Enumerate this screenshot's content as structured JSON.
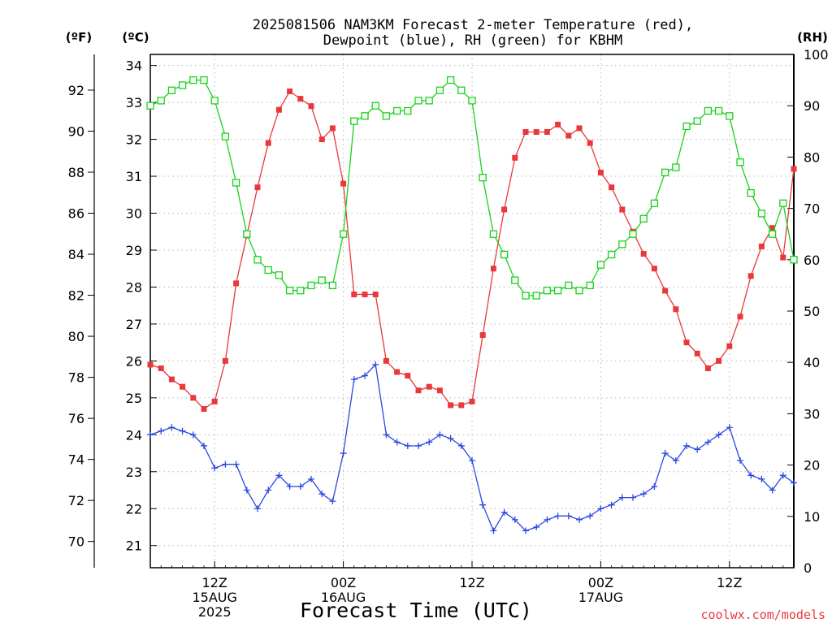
{
  "chart_data": {
    "type": "line",
    "title_line1": "2025081506 NAM3KM Forecast 2-meter Temperature (red),",
    "title_line2": "Dewpoint (blue), RH (green) for KBHM",
    "left_axis_f_label": "(ºF)",
    "left_axis_c_label": "(ºC)",
    "right_axis_label": "(RH)",
    "xlabel": "Forecast Time (UTC)",
    "credit": "coolwx.com/models",
    "x_hours_range": [
      6,
      66
    ],
    "celsius_range": [
      20.4,
      34.3
    ],
    "rh_range": [
      0,
      100
    ],
    "grid": true,
    "f_ticks": [
      "70",
      "72",
      "74",
      "76",
      "78",
      "80",
      "82",
      "84",
      "86",
      "88",
      "90",
      "92"
    ],
    "c_ticks": [
      "21",
      "22",
      "23",
      "24",
      "25",
      "26",
      "27",
      "28",
      "29",
      "30",
      "31",
      "32",
      "33",
      "34"
    ],
    "rh_ticks": [
      "0",
      "10",
      "20",
      "30",
      "40",
      "50",
      "60",
      "70",
      "80",
      "90",
      "100"
    ],
    "x_ticks": [
      {
        "hour": 12,
        "lines": [
          "12Z",
          "15AUG",
          "2025"
        ]
      },
      {
        "hour": 24,
        "lines": [
          "00Z",
          "16AUG"
        ]
      },
      {
        "hour": 36,
        "lines": [
          "12Z"
        ]
      },
      {
        "hour": 48,
        "lines": [
          "00Z",
          "17AUG"
        ]
      },
      {
        "hour": 60,
        "lines": [
          "12Z"
        ]
      }
    ],
    "series": [
      {
        "name": "Temperature",
        "unit": "C",
        "color": "#e8383b",
        "marker": "filled-square",
        "points": [
          [
            6,
            25.9
          ],
          [
            7,
            25.8
          ],
          [
            8,
            25.5
          ],
          [
            9,
            25.3
          ],
          [
            10,
            25.0
          ],
          [
            11,
            24.7
          ],
          [
            12,
            24.9
          ],
          [
            13,
            26.0
          ],
          [
            14,
            28.1
          ],
          [
            15,
            29.4
          ],
          [
            16,
            30.7
          ],
          [
            17,
            31.9
          ],
          [
            18,
            32.8
          ],
          [
            19,
            33.3
          ],
          [
            20,
            33.1
          ],
          [
            21,
            32.9
          ],
          [
            22,
            32.0
          ],
          [
            23,
            32.3
          ],
          [
            24,
            30.8
          ],
          [
            25,
            27.8
          ],
          [
            26,
            27.8
          ],
          [
            27,
            27.8
          ],
          [
            28,
            26.0
          ],
          [
            29,
            25.7
          ],
          [
            30,
            25.6
          ],
          [
            31,
            25.2
          ],
          [
            32,
            25.3
          ],
          [
            33,
            25.2
          ],
          [
            34,
            24.8
          ],
          [
            35,
            24.8
          ],
          [
            36,
            24.9
          ],
          [
            37,
            26.7
          ],
          [
            38,
            28.5
          ],
          [
            39,
            30.1
          ],
          [
            40,
            31.5
          ],
          [
            41,
            32.2
          ],
          [
            42,
            32.2
          ],
          [
            43,
            32.2
          ],
          [
            44,
            32.4
          ],
          [
            45,
            32.1
          ],
          [
            46,
            32.3
          ],
          [
            47,
            31.9
          ],
          [
            48,
            31.1
          ],
          [
            49,
            30.7
          ],
          [
            50,
            30.1
          ],
          [
            51,
            29.5
          ],
          [
            52,
            28.9
          ],
          [
            53,
            28.5
          ],
          [
            54,
            27.9
          ],
          [
            55,
            27.4
          ],
          [
            56,
            26.5
          ],
          [
            57,
            26.2
          ],
          [
            58,
            25.8
          ],
          [
            59,
            26.0
          ],
          [
            60,
            26.4
          ],
          [
            61,
            27.2
          ],
          [
            62,
            28.3
          ],
          [
            63,
            29.1
          ],
          [
            64,
            29.6
          ],
          [
            65,
            28.8
          ],
          [
            66,
            31.2
          ]
        ]
      },
      {
        "name": "Dewpoint",
        "unit": "C",
        "color": "#2b48e0",
        "marker": "plus",
        "points": [
          [
            6,
            24.0
          ],
          [
            7,
            24.1
          ],
          [
            8,
            24.2
          ],
          [
            9,
            24.1
          ],
          [
            10,
            24.0
          ],
          [
            11,
            23.7
          ],
          [
            12,
            23.1
          ],
          [
            13,
            23.2
          ],
          [
            14,
            23.2
          ],
          [
            15,
            22.5
          ],
          [
            16,
            22.0
          ],
          [
            17,
            22.5
          ],
          [
            18,
            22.9
          ],
          [
            19,
            22.6
          ],
          [
            20,
            22.6
          ],
          [
            21,
            22.8
          ],
          [
            22,
            22.4
          ],
          [
            23,
            22.2
          ],
          [
            24,
            23.5
          ],
          [
            25,
            25.5
          ],
          [
            26,
            25.6
          ],
          [
            27,
            25.9
          ],
          [
            28,
            24.0
          ],
          [
            29,
            23.8
          ],
          [
            30,
            23.7
          ],
          [
            31,
            23.7
          ],
          [
            32,
            23.8
          ],
          [
            33,
            24.0
          ],
          [
            34,
            23.9
          ],
          [
            35,
            23.7
          ],
          [
            36,
            23.3
          ],
          [
            37,
            22.1
          ],
          [
            38,
            21.4
          ],
          [
            39,
            21.9
          ],
          [
            40,
            21.7
          ],
          [
            41,
            21.4
          ],
          [
            42,
            21.5
          ],
          [
            43,
            21.7
          ],
          [
            44,
            21.8
          ],
          [
            45,
            21.8
          ],
          [
            46,
            21.7
          ],
          [
            47,
            21.8
          ],
          [
            48,
            22.0
          ],
          [
            49,
            22.1
          ],
          [
            50,
            22.3
          ],
          [
            51,
            22.3
          ],
          [
            52,
            22.4
          ],
          [
            53,
            22.6
          ],
          [
            54,
            23.5
          ],
          [
            55,
            23.3
          ],
          [
            56,
            23.7
          ],
          [
            57,
            23.6
          ],
          [
            58,
            23.8
          ],
          [
            59,
            24.0
          ],
          [
            60,
            24.2
          ],
          [
            61,
            23.3
          ],
          [
            62,
            22.9
          ],
          [
            63,
            22.8
          ],
          [
            64,
            22.5
          ],
          [
            65,
            22.9
          ],
          [
            66,
            22.7
          ]
        ]
      },
      {
        "name": "RH",
        "unit": "%",
        "color": "#17d21a",
        "marker": "open-square",
        "points": [
          [
            6,
            90
          ],
          [
            7,
            91
          ],
          [
            8,
            93
          ],
          [
            9,
            94
          ],
          [
            10,
            95
          ],
          [
            11,
            95
          ],
          [
            12,
            91
          ],
          [
            13,
            84
          ],
          [
            14,
            75
          ],
          [
            15,
            65
          ],
          [
            16,
            60
          ],
          [
            17,
            58
          ],
          [
            18,
            57
          ],
          [
            19,
            54
          ],
          [
            20,
            54
          ],
          [
            21,
            55
          ],
          [
            22,
            56
          ],
          [
            23,
            55
          ],
          [
            24,
            65
          ],
          [
            25,
            87
          ],
          [
            26,
            88
          ],
          [
            27,
            90
          ],
          [
            28,
            88
          ],
          [
            29,
            89
          ],
          [
            30,
            89
          ],
          [
            31,
            91
          ],
          [
            32,
            91
          ],
          [
            33,
            93
          ],
          [
            34,
            95
          ],
          [
            35,
            93
          ],
          [
            36,
            91
          ],
          [
            37,
            76
          ],
          [
            38,
            65
          ],
          [
            39,
            61
          ],
          [
            40,
            56
          ],
          [
            41,
            53
          ],
          [
            42,
            53
          ],
          [
            43,
            54
          ],
          [
            44,
            54
          ],
          [
            45,
            55
          ],
          [
            46,
            54
          ],
          [
            47,
            55
          ],
          [
            48,
            59
          ],
          [
            49,
            61
          ],
          [
            50,
            63
          ],
          [
            51,
            65
          ],
          [
            52,
            68
          ],
          [
            53,
            71
          ],
          [
            54,
            77
          ],
          [
            55,
            78
          ],
          [
            56,
            86
          ],
          [
            57,
            87
          ],
          [
            58,
            89
          ],
          [
            59,
            89
          ],
          [
            60,
            88
          ],
          [
            61,
            79
          ],
          [
            62,
            73
          ],
          [
            63,
            69
          ],
          [
            64,
            65
          ],
          [
            65,
            71
          ],
          [
            66,
            60
          ]
        ]
      }
    ]
  }
}
